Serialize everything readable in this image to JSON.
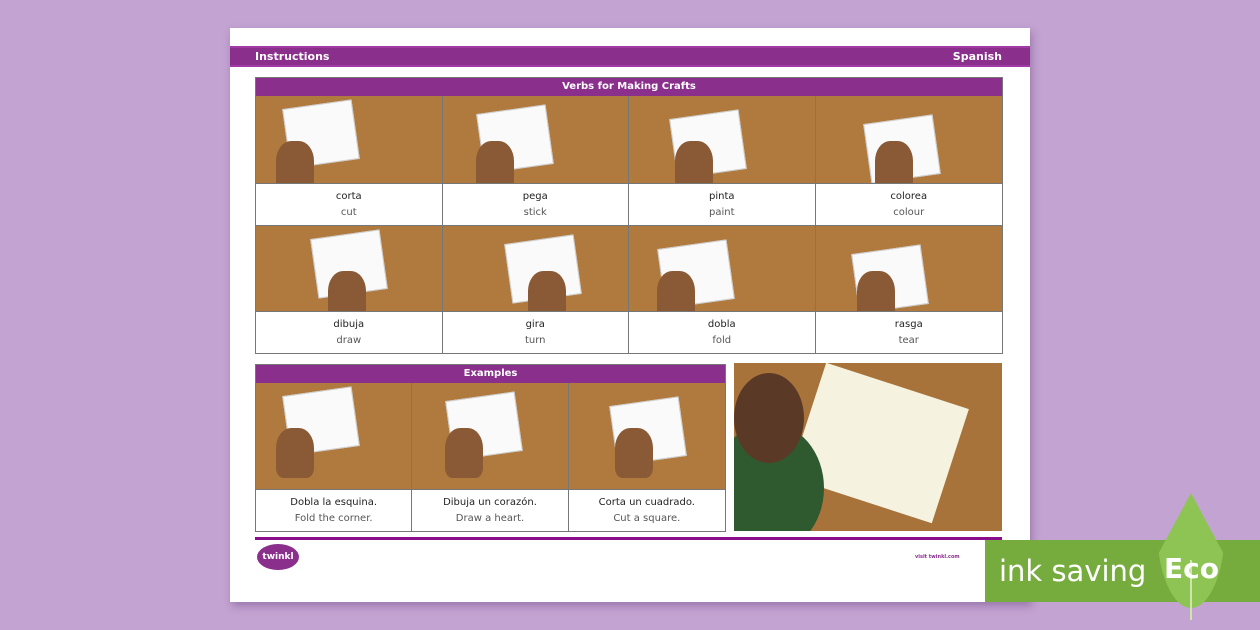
{
  "header": {
    "left": "Instructions",
    "right": "Spanish"
  },
  "verbs": {
    "title": "Verbs for Making Crafts",
    "items": [
      {
        "es": "corta",
        "en": "cut"
      },
      {
        "es": "pega",
        "en": "stick"
      },
      {
        "es": "pinta",
        "en": "paint"
      },
      {
        "es": "colorea",
        "en": "colour"
      },
      {
        "es": "dibuja",
        "en": "draw"
      },
      {
        "es": "gira",
        "en": "turn"
      },
      {
        "es": "dobla",
        "en": "fold"
      },
      {
        "es": "rasga",
        "en": "tear"
      }
    ]
  },
  "examples": {
    "title": "Examples",
    "items": [
      {
        "es": "Dobla la esquina.",
        "en": "Fold the corner."
      },
      {
        "es": "Dibuja un corazón.",
        "en": "Draw a heart."
      },
      {
        "es": "Corta un cuadrado.",
        "en": "Cut a square."
      }
    ]
  },
  "footer": {
    "logo": "twinkl",
    "visit": "visit twinkl.com"
  },
  "badge": {
    "text": "ink saving",
    "eco": "Eco"
  },
  "colors": {
    "background": "#c3a3d2",
    "accent": "#8a2f8c",
    "eco_green": "#76ac3e"
  }
}
